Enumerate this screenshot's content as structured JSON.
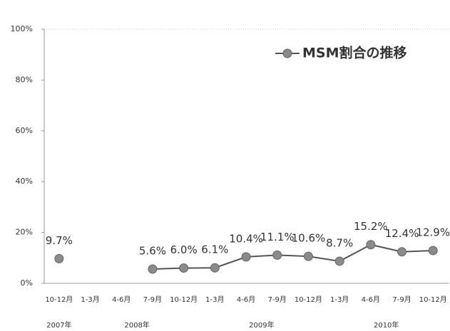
{
  "chart_data": {
    "type": "line",
    "categories": [
      "10-12月",
      "1-3月",
      "4-6月",
      "7-9月",
      "10-12月",
      "1-3月",
      "4-6月",
      "7-9月",
      "10-12月",
      "1-3月",
      "4-6月",
      "7-9月",
      "10-12月"
    ],
    "x_groups": [
      {
        "label": "2007年",
        "categories": [
          0,
          0
        ]
      },
      {
        "label": "2008年",
        "categories": [
          1,
          4
        ]
      },
      {
        "label": "2009年",
        "categories": [
          5,
          8
        ]
      },
      {
        "label": "2010年",
        "categories": [
          9,
          12
        ]
      }
    ],
    "series": [
      {
        "name": "MSM割合の推移",
        "color": "#555555",
        "marker_color": "#8a8a8a",
        "values": [
          9.7,
          null,
          null,
          5.6,
          6.0,
          6.1,
          10.4,
          11.1,
          10.6,
          8.7,
          15.2,
          12.4,
          12.9
        ],
        "value_labels": [
          "9.7%",
          null,
          null,
          "5.6%",
          "6.0%",
          "6.1%",
          "10.4%",
          "11.1%",
          "10.6%",
          "8.7%",
          "15.2%",
          "12.4%",
          "12.9%"
        ]
      }
    ],
    "ylim": [
      0,
      100
    ],
    "yticks": [
      {
        "value": 0,
        "label": "0%"
      },
      {
        "value": 20,
        "label": "20%"
      },
      {
        "value": 40,
        "label": "40%"
      },
      {
        "value": 60,
        "label": "60%"
      },
      {
        "value": 80,
        "label": "80%"
      },
      {
        "value": 100,
        "label": "100%"
      }
    ],
    "grid": false,
    "legend": "top-right"
  }
}
